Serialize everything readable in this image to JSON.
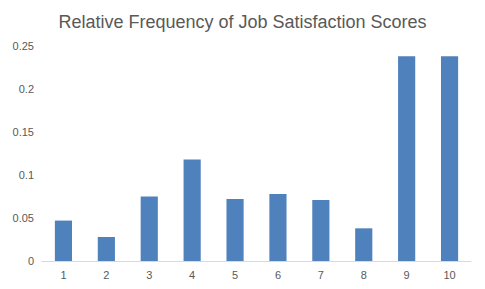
{
  "chart_data": {
    "type": "bar",
    "title": "Relative Frequency of Job Satisfaction Scores",
    "categories": [
      "1",
      "2",
      "3",
      "4",
      "5",
      "6",
      "7",
      "8",
      "9",
      "10"
    ],
    "values": [
      0.047,
      0.028,
      0.075,
      0.118,
      0.072,
      0.078,
      0.071,
      0.038,
      0.238,
      0.238
    ],
    "color": "#4f81bd",
    "ylim": [
      0,
      0.25
    ],
    "yticks": [
      0,
      0.05,
      0.1,
      0.15,
      0.2,
      0.25
    ],
    "grid": false
  }
}
